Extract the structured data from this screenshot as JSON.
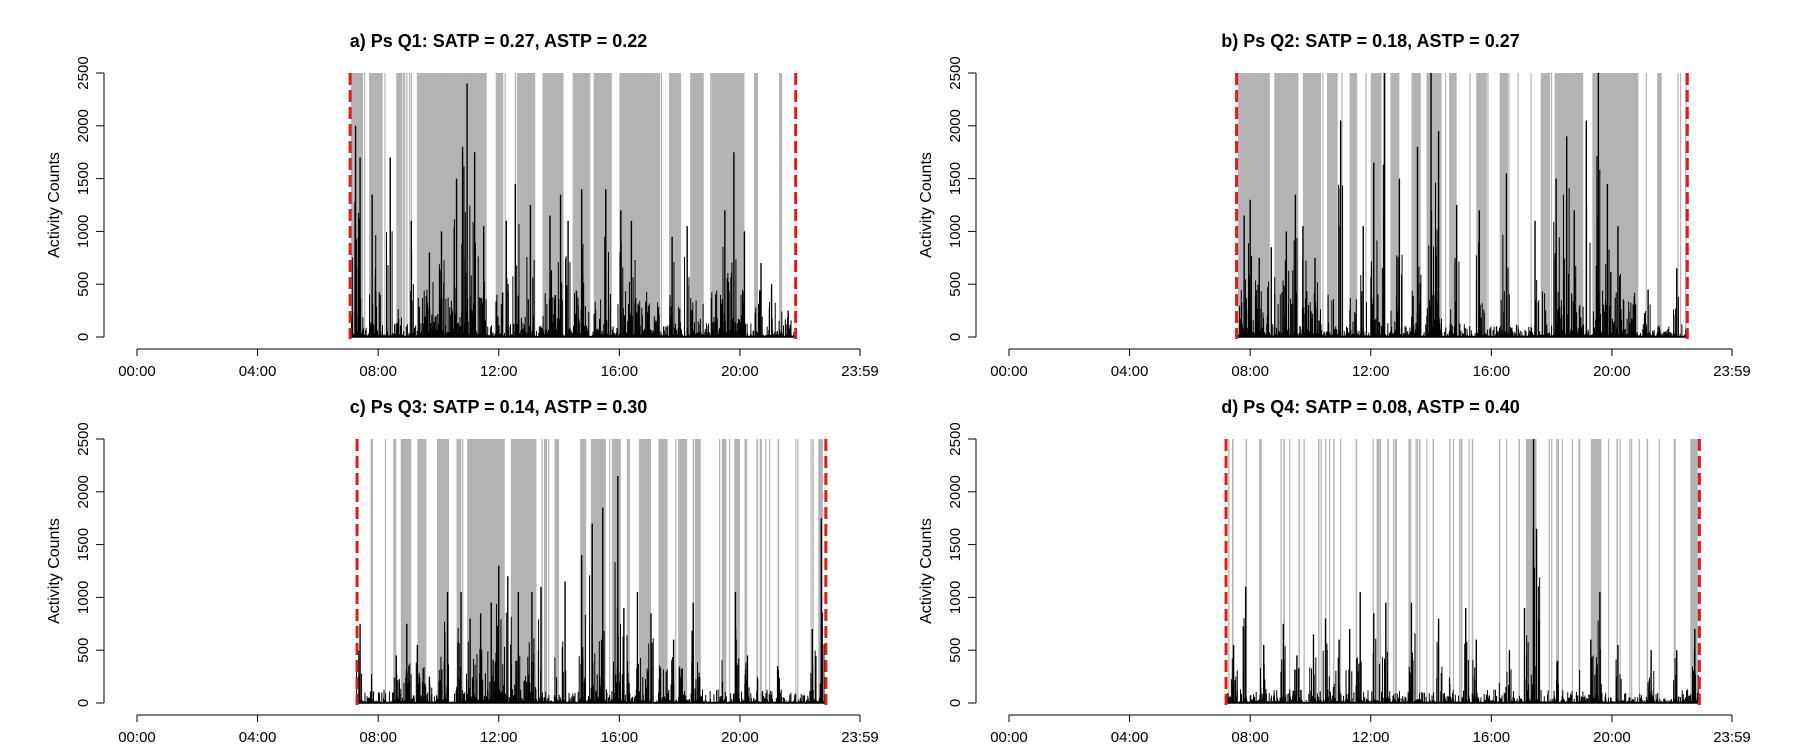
{
  "colors": {
    "background": "#ffffff",
    "active_shading": "#b3b3b3",
    "activity_trace": "#000000",
    "wear_boundary": "#e31a1c"
  },
  "chart_data": [
    {
      "type": "bar",
      "title": "a) Ps Q1: SATP = 0.27, ASTP = 0.22",
      "ylabel": "Activity Counts",
      "xlabel": "",
      "ylim": [
        0,
        2500
      ],
      "xlim_hours": [
        0,
        23.983
      ],
      "y_ticks": [
        "0",
        "500",
        "1000",
        "1500",
        "2000",
        "2500"
      ],
      "x_ticks": [
        "00:00",
        "04:00",
        "08:00",
        "12:00",
        "16:00",
        "20:00",
        "23:59"
      ],
      "wear_start": 7.07,
      "wear_end": 21.85,
      "active_bouts": [
        [
          7.1,
          7.5
        ],
        [
          7.7,
          8.15
        ],
        [
          8.6,
          8.8
        ],
        [
          9.3,
          11.6
        ],
        [
          11.9,
          12.15
        ],
        [
          12.6,
          13.2
        ],
        [
          13.45,
          14.15
        ],
        [
          14.45,
          15.0
        ],
        [
          15.15,
          15.75
        ],
        [
          16.0,
          17.35
        ],
        [
          17.65,
          18.05
        ],
        [
          18.35,
          18.8
        ],
        [
          19.05,
          20.15
        ],
        [
          20.5,
          20.6
        ],
        [
          21.3,
          21.4
        ]
      ],
      "peaks": [
        [
          7.25,
          2000
        ],
        [
          7.4,
          1700
        ],
        [
          7.8,
          1350
        ],
        [
          8.4,
          1700
        ],
        [
          9.1,
          1100
        ],
        [
          9.7,
          800
        ],
        [
          10.1,
          1000
        ],
        [
          10.6,
          1500
        ],
        [
          10.8,
          1800
        ],
        [
          10.95,
          2400
        ],
        [
          11.2,
          1750
        ],
        [
          11.5,
          1050
        ],
        [
          12.25,
          1100
        ],
        [
          12.55,
          1450
        ],
        [
          13.05,
          1250
        ],
        [
          13.7,
          1150
        ],
        [
          14.05,
          1350
        ],
        [
          14.3,
          1100
        ],
        [
          14.75,
          1400
        ],
        [
          15.55,
          1400
        ],
        [
          16.05,
          1200
        ],
        [
          16.4,
          1100
        ],
        [
          17.75,
          950
        ],
        [
          18.25,
          1050
        ],
        [
          19.5,
          1200
        ],
        [
          19.8,
          1750
        ],
        [
          20.15,
          1000
        ],
        [
          20.7,
          700
        ],
        [
          21.05,
          500
        ],
        [
          21.6,
          250
        ]
      ]
    },
    {
      "type": "bar",
      "title": "b) Ps Q2: SATP = 0.18, ASTP = 0.27",
      "ylabel": "Activity Counts",
      "xlabel": "",
      "ylim": [
        0,
        2500
      ],
      "xlim_hours": [
        0,
        23.983
      ],
      "y_ticks": [
        "0",
        "500",
        "1000",
        "1500",
        "2000",
        "2500"
      ],
      "x_ticks": [
        "00:00",
        "04:00",
        "08:00",
        "12:00",
        "16:00",
        "20:00",
        "23:59"
      ],
      "wear_start": 7.55,
      "wear_end": 22.5,
      "active_bouts": [
        [
          7.6,
          8.65
        ],
        [
          8.8,
          9.6
        ],
        [
          9.75,
          10.35
        ],
        [
          10.55,
          10.9
        ],
        [
          11.3,
          11.55
        ],
        [
          12.0,
          12.35
        ],
        [
          12.65,
          12.95
        ],
        [
          13.35,
          13.65
        ],
        [
          13.85,
          14.35
        ],
        [
          14.6,
          14.85
        ],
        [
          15.5,
          15.85
        ],
        [
          16.3,
          16.55
        ],
        [
          17.65,
          17.95
        ],
        [
          18.1,
          19.05
        ],
        [
          19.35,
          20.85
        ],
        [
          21.5,
          21.65
        ]
      ],
      "peaks": [
        [
          7.8,
          1150
        ],
        [
          8.0,
          1300
        ],
        [
          8.3,
          750
        ],
        [
          8.7,
          850
        ],
        [
          9.2,
          1000
        ],
        [
          9.5,
          1350
        ],
        [
          9.75,
          1050
        ],
        [
          10.15,
          750
        ],
        [
          11.0,
          2050
        ],
        [
          11.75,
          1050
        ],
        [
          12.1,
          1650
        ],
        [
          12.45,
          2550
        ],
        [
          12.95,
          1500
        ],
        [
          13.55,
          1800
        ],
        [
          14.0,
          2550
        ],
        [
          14.25,
          1950
        ],
        [
          14.85,
          1250
        ],
        [
          15.6,
          1200
        ],
        [
          16.5,
          1550
        ],
        [
          17.45,
          1100
        ],
        [
          18.15,
          1500
        ],
        [
          18.5,
          1900
        ],
        [
          18.75,
          1200
        ],
        [
          19.15,
          2050
        ],
        [
          19.55,
          2550
        ],
        [
          19.85,
          1450
        ],
        [
          20.2,
          1050
        ],
        [
          21.2,
          450
        ],
        [
          22.15,
          650
        ]
      ]
    },
    {
      "type": "bar",
      "title": "c) Ps Q3: SATP = 0.14, ASTP = 0.30",
      "ylabel": "Activity Counts",
      "xlabel": "",
      "ylim": [
        0,
        2500
      ],
      "xlim_hours": [
        0,
        23.983
      ],
      "y_ticks": [
        "0",
        "500",
        "1000",
        "1500",
        "2000",
        "2500"
      ],
      "x_ticks": [
        "00:00",
        "04:00",
        "08:00",
        "12:00",
        "16:00",
        "20:00",
        "23:59"
      ],
      "wear_start": 7.3,
      "wear_end": 22.85,
      "active_bouts": [
        [
          7.75,
          7.8
        ],
        [
          8.5,
          8.6
        ],
        [
          8.75,
          9.1
        ],
        [
          9.3,
          9.6
        ],
        [
          9.95,
          10.35
        ],
        [
          10.6,
          10.75
        ],
        [
          10.95,
          12.2
        ],
        [
          12.4,
          13.25
        ],
        [
          13.5,
          13.6
        ],
        [
          13.85,
          14.0
        ],
        [
          14.7,
          14.9
        ],
        [
          15.05,
          15.55
        ],
        [
          15.75,
          16.05
        ],
        [
          16.25,
          16.35
        ],
        [
          16.65,
          17.05
        ],
        [
          17.3,
          17.6
        ],
        [
          17.95,
          18.25
        ],
        [
          18.5,
          18.7
        ],
        [
          19.4,
          19.55
        ],
        [
          19.85,
          20.0
        ],
        [
          20.15,
          20.2
        ],
        [
          20.55,
          20.6
        ],
        [
          21.25,
          21.3
        ],
        [
          22.4,
          22.45
        ],
        [
          22.6,
          22.75
        ]
      ],
      "peaks": [
        [
          7.4,
          750
        ],
        [
          8.6,
          450
        ],
        [
          8.95,
          750
        ],
        [
          9.3,
          550
        ],
        [
          9.7,
          250
        ],
        [
          10.3,
          1050
        ],
        [
          10.75,
          1050
        ],
        [
          11.05,
          800
        ],
        [
          11.4,
          850
        ],
        [
          11.75,
          950
        ],
        [
          12.0,
          1300
        ],
        [
          12.3,
          1200
        ],
        [
          12.65,
          1050
        ],
        [
          13.1,
          1050
        ],
        [
          13.4,
          1100
        ],
        [
          14.2,
          1150
        ],
        [
          14.75,
          1400
        ],
        [
          15.1,
          1700
        ],
        [
          15.45,
          1850
        ],
        [
          15.95,
          2150
        ],
        [
          16.15,
          900
        ],
        [
          16.6,
          1050
        ],
        [
          17.05,
          850
        ],
        [
          17.8,
          600
        ],
        [
          18.45,
          950
        ],
        [
          19.85,
          1050
        ],
        [
          20.25,
          450
        ],
        [
          21.25,
          350
        ],
        [
          22.4,
          700
        ],
        [
          22.7,
          1750
        ]
      ]
    },
    {
      "type": "bar",
      "title": "d) Ps Q4: SATP = 0.08, ASTP = 0.40",
      "ylabel": "Activity Counts",
      "xlabel": "",
      "ylim": [
        0,
        2500
      ],
      "xlim_hours": [
        0,
        23.983
      ],
      "y_ticks": [
        "0",
        "500",
        "1000",
        "1500",
        "2000",
        "2500"
      ],
      "x_ticks": [
        "00:00",
        "04:00",
        "08:00",
        "12:00",
        "16:00",
        "20:00",
        "23:59"
      ],
      "wear_start": 7.2,
      "wear_end": 22.9,
      "active_bouts": [
        [
          7.4,
          7.45
        ],
        [
          7.85,
          7.9
        ],
        [
          8.3,
          8.35
        ],
        [
          9.1,
          9.15
        ],
        [
          9.6,
          9.65
        ],
        [
          10.25,
          10.3
        ],
        [
          10.75,
          10.8
        ],
        [
          11.5,
          11.55
        ],
        [
          12.2,
          12.3
        ],
        [
          12.55,
          12.6
        ],
        [
          13.25,
          13.3
        ],
        [
          13.6,
          13.65
        ],
        [
          14.05,
          14.1
        ],
        [
          14.6,
          14.65
        ],
        [
          15.35,
          15.4
        ],
        [
          16.25,
          16.3
        ],
        [
          16.9,
          16.95
        ],
        [
          17.15,
          17.5
        ],
        [
          18.15,
          18.2
        ],
        [
          18.9,
          18.95
        ],
        [
          19.3,
          19.65
        ],
        [
          20.15,
          20.2
        ],
        [
          21.15,
          21.2
        ],
        [
          22.05,
          22.1
        ],
        [
          22.6,
          22.85
        ]
      ],
      "peaks": [
        [
          7.45,
          550
        ],
        [
          7.85,
          1100
        ],
        [
          8.45,
          550
        ],
        [
          9.1,
          750
        ],
        [
          9.55,
          450
        ],
        [
          10.1,
          650
        ],
        [
          10.5,
          800
        ],
        [
          10.95,
          600
        ],
        [
          11.3,
          700
        ],
        [
          11.65,
          1050
        ],
        [
          12.1,
          850
        ],
        [
          12.5,
          950
        ],
        [
          13.35,
          950
        ],
        [
          14.25,
          800
        ],
        [
          15.15,
          900
        ],
        [
          15.5,
          600
        ],
        [
          16.6,
          500
        ],
        [
          17.1,
          900
        ],
        [
          17.4,
          2550
        ],
        [
          17.5,
          1650
        ],
        [
          18.2,
          400
        ],
        [
          19.3,
          600
        ],
        [
          19.6,
          1050
        ],
        [
          20.2,
          550
        ],
        [
          21.3,
          500
        ],
        [
          22.15,
          500
        ],
        [
          22.75,
          700
        ]
      ]
    }
  ]
}
